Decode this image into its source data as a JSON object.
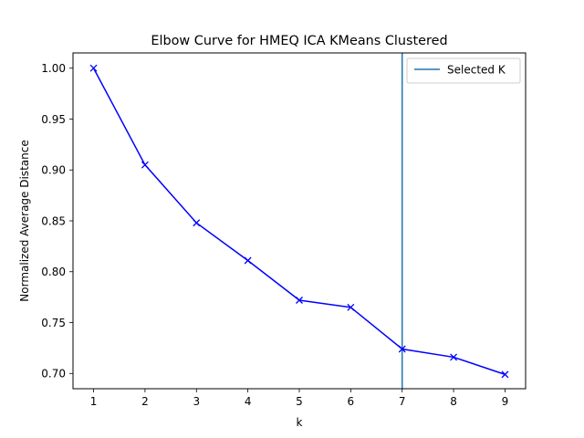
{
  "chart_data": {
    "type": "line",
    "title": "Elbow Curve for HMEQ ICA KMeans Clustered",
    "xlabel": "k",
    "ylabel": "Normalized Average Distance",
    "x": [
      1,
      2,
      3,
      4,
      5,
      6,
      7,
      8,
      9
    ],
    "series": [
      {
        "values": [
          1.0,
          0.905,
          0.848,
          0.811,
          0.772,
          0.765,
          0.724,
          0.716,
          0.699
        ],
        "color": "#0000ff",
        "marker": "x"
      }
    ],
    "xlim": [
      0.6,
      9.4
    ],
    "ylim": [
      0.685,
      1.015
    ],
    "xticks": [
      "1",
      "2",
      "3",
      "4",
      "5",
      "6",
      "7",
      "8",
      "9"
    ],
    "yticks": [
      "1.00",
      "0.95",
      "0.90",
      "0.85",
      "0.80",
      "0.75",
      "0.70"
    ],
    "vline": {
      "x": 7,
      "label": "Selected K",
      "color": "#1f77b4"
    },
    "legend": {
      "position": "top-right",
      "entries": [
        "Selected K"
      ]
    },
    "grid": false
  }
}
